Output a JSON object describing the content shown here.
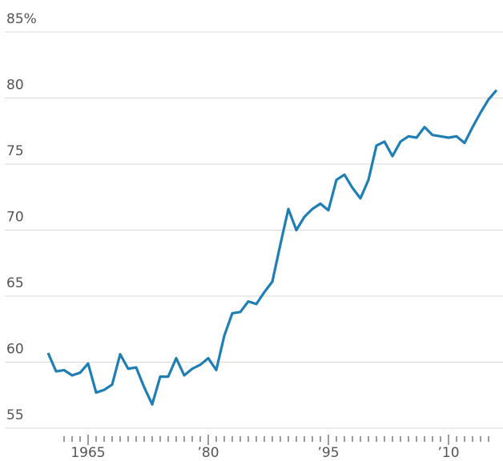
{
  "chart_data": {
    "type": "line",
    "x": [
      1960,
      1961,
      1962,
      1963,
      1964,
      1965,
      1966,
      1967,
      1968,
      1969,
      1970,
      1971,
      1972,
      1973,
      1974,
      1975,
      1976,
      1977,
      1978,
      1979,
      1980,
      1981,
      1982,
      1983,
      1984,
      1985,
      1986,
      1987,
      1988,
      1989,
      1990,
      1991,
      1992,
      1993,
      1994,
      1995,
      1996,
      1997,
      1998,
      1999,
      2000,
      2001,
      2002,
      2003,
      2004,
      2005,
      2006,
      2007,
      2008,
      2009,
      2010,
      2011,
      2012,
      2013,
      2014,
      2015,
      2016
    ],
    "series": [
      {
        "name": null,
        "color": "#1f7fb4",
        "values": [
          60.7,
          59.3,
          59.4,
          59.0,
          59.2,
          59.9,
          57.7,
          57.9,
          58.3,
          60.6,
          59.5,
          59.6,
          58.1,
          56.8,
          58.9,
          58.9,
          60.3,
          59.0,
          59.5,
          59.8,
          60.3,
          59.4,
          62.0,
          63.7,
          63.8,
          64.6,
          64.4,
          65.3,
          66.1,
          68.9,
          71.6,
          70.0,
          71.0,
          71.6,
          72.0,
          71.5,
          73.8,
          74.2,
          73.2,
          72.4,
          73.8,
          76.4,
          76.7,
          75.6,
          76.7,
          77.1,
          77.0,
          77.8,
          77.2,
          77.1,
          77.0,
          77.1,
          76.6,
          77.8,
          78.9,
          79.9,
          80.6
        ]
      }
    ],
    "xlim": [
      1954,
      2016.8
    ],
    "xticks": [
      1965,
      {
        "value": 1980,
        "label": "’80"
      },
      {
        "value": 1995,
        "label": "’95"
      },
      {
        "value": 2010,
        "label": "’10"
      }
    ],
    "xminorticks": [
      1962,
      1963,
      1964,
      1966,
      1967,
      1968,
      1969,
      1970,
      1971,
      1972,
      1973,
      1974,
      1975,
      1976,
      1977,
      1978,
      1979,
      1981,
      1982,
      1983,
      1984,
      1985,
      1986,
      1987,
      1988,
      1989,
      1990,
      1991,
      1992,
      1993,
      1994,
      1996,
      1997,
      1998,
      1999,
      2000,
      2001,
      2002,
      2003,
      2004,
      2005,
      2006,
      2007,
      2008,
      2009,
      2011,
      2012,
      2013,
      2014,
      2015
    ],
    "ylim": [
      55,
      85
    ],
    "yticks": [
      55,
      60,
      65,
      70,
      75,
      {
        "value": 85,
        "label": "85%"
      },
      80
    ],
    "grid": true
  }
}
